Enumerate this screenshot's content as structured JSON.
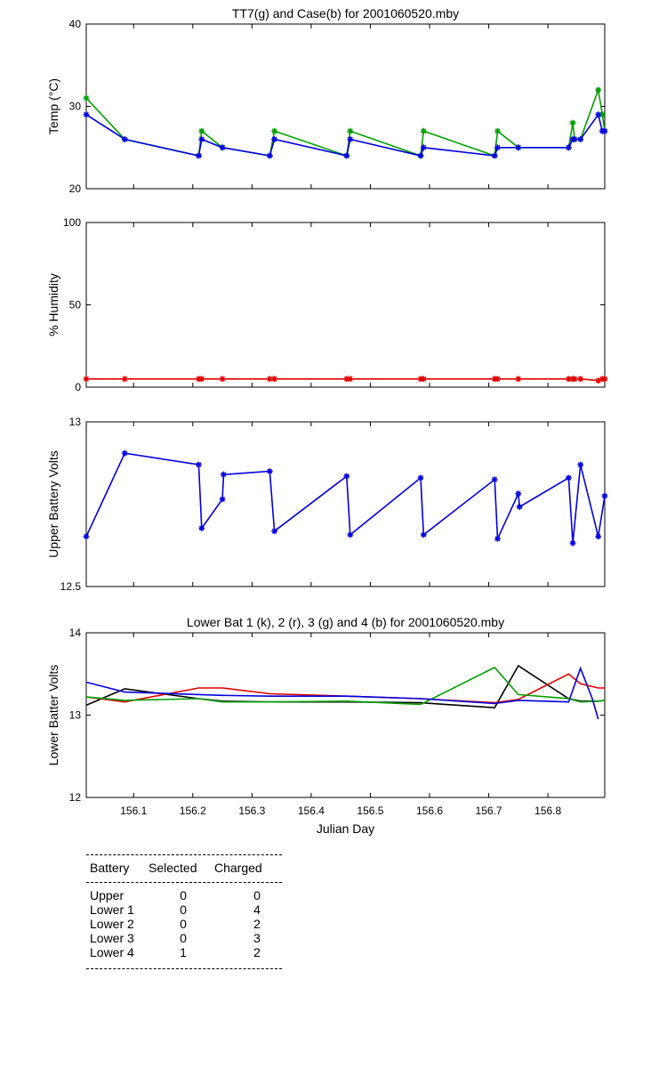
{
  "chart_data": [
    {
      "type": "line",
      "title": "TT7(g) and Case(b) for 2001060520.mby",
      "xlabel": "",
      "ylabel": "Temp  (°C)",
      "xlim": [
        156.02,
        156.896
      ],
      "ylim": [
        20,
        40
      ],
      "yticks": [
        "20",
        "30",
        "40"
      ],
      "series": [
        {
          "name": "TT7",
          "color": "#00a000",
          "marker": "*",
          "x": [
            156.02,
            156.085,
            156.21,
            156.215,
            156.25,
            156.33,
            156.338,
            156.46,
            156.466,
            156.585,
            156.59,
            156.71,
            156.715,
            156.75,
            156.835,
            156.842,
            156.845,
            156.855,
            156.885,
            156.892,
            156.896
          ],
          "y": [
            31,
            26,
            24,
            27,
            25,
            24,
            27,
            24,
            27,
            24,
            27,
            24,
            27,
            25,
            25,
            28,
            26,
            26,
            32,
            29,
            27
          ]
        },
        {
          "name": "Case",
          "color": "#0000e0",
          "marker": "*",
          "x": [
            156.02,
            156.085,
            156.21,
            156.215,
            156.25,
            156.33,
            156.338,
            156.46,
            156.466,
            156.585,
            156.59,
            156.71,
            156.715,
            156.75,
            156.835,
            156.842,
            156.845,
            156.855,
            156.885,
            156.892,
            156.896
          ],
          "y": [
            29,
            26,
            24,
            26,
            25,
            24,
            26,
            24,
            26,
            24,
            25,
            24,
            25,
            25,
            25,
            26,
            26,
            26,
            29,
            27,
            27
          ]
        }
      ]
    },
    {
      "type": "line",
      "title": "",
      "xlabel": "",
      "ylabel": "% Humidity",
      "xlim": [
        156.02,
        156.896
      ],
      "ylim": [
        0,
        100
      ],
      "yticks": [
        "0",
        "50",
        "100"
      ],
      "series": [
        {
          "name": "Humidity",
          "color": "#e00000",
          "marker": "*",
          "x": [
            156.02,
            156.085,
            156.21,
            156.215,
            156.25,
            156.33,
            156.338,
            156.46,
            156.466,
            156.585,
            156.59,
            156.71,
            156.715,
            156.75,
            156.835,
            156.842,
            156.845,
            156.855,
            156.885,
            156.892,
            156.896
          ],
          "y": [
            5,
            5,
            5,
            5,
            5,
            5,
            5,
            5,
            5,
            5,
            5,
            5,
            5,
            5,
            5,
            5,
            5,
            5,
            4,
            5,
            5
          ]
        }
      ]
    },
    {
      "type": "line",
      "title": "",
      "xlabel": "",
      "ylabel": "Upper Battery Volts",
      "xlim": [
        156.02,
        156.896
      ],
      "ylim": [
        12.5,
        13
      ],
      "yticks": [
        "12.5",
        "13"
      ],
      "series": [
        {
          "name": "Upper",
          "color": "#0000e0",
          "marker": "*",
          "x": [
            156.02,
            156.085,
            156.21,
            156.215,
            156.25,
            156.252,
            156.33,
            156.338,
            156.46,
            156.466,
            156.585,
            156.59,
            156.71,
            156.715,
            156.75,
            156.752,
            156.835,
            156.842,
            156.855,
            156.885,
            156.896
          ],
          "y": [
            12.652,
            12.905,
            12.87,
            12.677,
            12.765,
            12.84,
            12.85,
            12.668,
            12.835,
            12.657,
            12.83,
            12.657,
            12.825,
            12.645,
            12.782,
            12.742,
            12.83,
            12.632,
            12.87,
            12.652,
            12.775
          ]
        }
      ]
    },
    {
      "type": "line",
      "title": "Lower Bat 1 (k), 2 (r), 3 (g) and 4 (b) for 2001060520.mby",
      "xlabel": "Julian Day",
      "ylabel": "Lower Batter Volts",
      "xlim": [
        156.02,
        156.896
      ],
      "ylim": [
        12,
        14
      ],
      "yticks": [
        "12",
        "13",
        "14"
      ],
      "xticks": [
        "156.1",
        "156.2",
        "156.3",
        "156.4",
        "156.5",
        "156.6",
        "156.7",
        "156.8"
      ],
      "series": [
        {
          "name": "Lower 1",
          "color": "#000000",
          "x": [
            156.02,
            156.085,
            156.21,
            156.25,
            156.33,
            156.46,
            156.585,
            156.71,
            156.75,
            156.835,
            156.855,
            156.885,
            156.896
          ],
          "y": [
            13.12,
            13.32,
            13.2,
            13.17,
            13.16,
            13.16,
            13.15,
            13.09,
            13.6,
            13.2,
            13.17,
            13.17,
            13.18
          ]
        },
        {
          "name": "Lower 2",
          "color": "#e00000",
          "x": [
            156.02,
            156.085,
            156.21,
            156.25,
            156.33,
            156.46,
            156.585,
            156.71,
            156.75,
            156.835,
            156.855,
            156.885,
            156.896
          ],
          "y": [
            13.22,
            13.16,
            13.33,
            13.33,
            13.26,
            13.23,
            13.2,
            13.15,
            13.19,
            13.5,
            13.38,
            13.33,
            13.33
          ]
        },
        {
          "name": "Lower 3",
          "color": "#00a000",
          "x": [
            156.02,
            156.085,
            156.21,
            156.25,
            156.33,
            156.46,
            156.585,
            156.71,
            156.75,
            156.835,
            156.855,
            156.885,
            156.896
          ],
          "y": [
            13.22,
            13.18,
            13.2,
            13.16,
            13.16,
            13.17,
            13.13,
            13.58,
            13.25,
            13.2,
            13.16,
            13.17,
            13.18
          ]
        },
        {
          "name": "Lower 4",
          "color": "#0000e0",
          "x": [
            156.02,
            156.085,
            156.21,
            156.25,
            156.33,
            156.46,
            156.585,
            156.71,
            156.75,
            156.835,
            156.855,
            156.875,
            156.885
          ],
          "y": [
            13.4,
            13.28,
            13.25,
            13.24,
            13.23,
            13.23,
            13.2,
            13.14,
            13.18,
            13.16,
            13.57,
            13.2,
            12.95
          ]
        }
      ]
    }
  ],
  "xticks": [
    "156.1",
    "156.2",
    "156.3",
    "156.4",
    "156.5",
    "156.6",
    "156.7",
    "156.8"
  ],
  "table": {
    "headers": [
      "Battery",
      "Selected",
      "Charged"
    ],
    "rows": [
      [
        "Upper",
        "0",
        "0"
      ],
      [
        "Lower 1",
        "0",
        "4"
      ],
      [
        "Lower 2",
        "0",
        "2"
      ],
      [
        "Lower 3",
        "0",
        "3"
      ],
      [
        "Lower 4",
        "1",
        "2"
      ]
    ]
  }
}
